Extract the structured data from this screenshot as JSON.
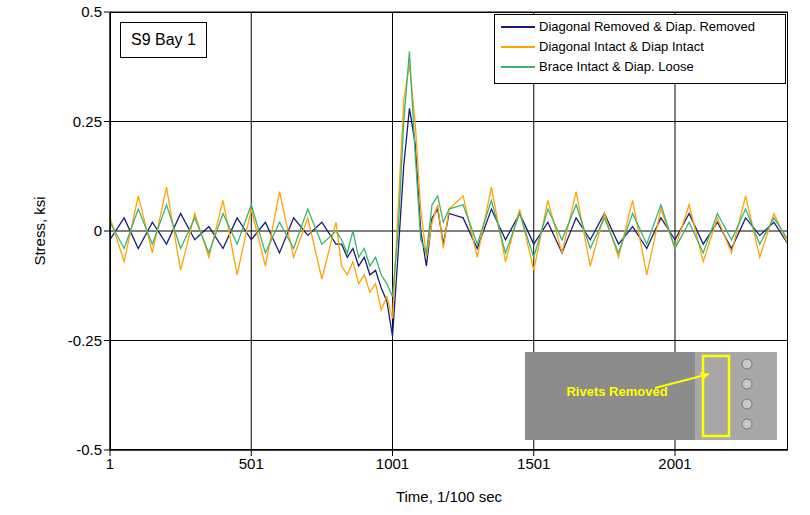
{
  "chart_data": {
    "type": "line",
    "annotations": [
      "S9 Bay 1",
      "Rivets Removed"
    ],
    "x_label": "Time, 1/100 sec",
    "y_label": "Stress, ksi",
    "x": [
      1,
      51,
      101,
      151,
      201,
      251,
      301,
      351,
      401,
      451,
      501,
      551,
      601,
      651,
      701,
      751,
      801,
      821,
      841,
      861,
      881,
      901,
      921,
      941,
      961,
      981,
      1001,
      1021,
      1041,
      1061,
      1081,
      1101,
      1121,
      1141,
      1161,
      1181,
      1201,
      1251,
      1301,
      1351,
      1401,
      1451,
      1501,
      1551,
      1601,
      1651,
      1701,
      1751,
      1801,
      1851,
      1901,
      1951,
      2001,
      2051,
      2101,
      2151,
      2201,
      2251,
      2301,
      2351,
      2401
    ],
    "series": [
      {
        "name": "Diagonal Removed & Diap. Removed",
        "color": "#1a1a80",
        "values": [
          -0.02,
          0.03,
          -0.04,
          0.02,
          -0.03,
          0.04,
          -0.02,
          0.01,
          -0.04,
          0.03,
          -0.02,
          0.02,
          -0.05,
          0.03,
          -0.01,
          0.02,
          -0.03,
          -0.03,
          -0.06,
          -0.04,
          -0.08,
          -0.06,
          -0.1,
          -0.09,
          -0.13,
          -0.16,
          -0.24,
          -0.05,
          0.15,
          0.28,
          0.2,
          0.0,
          -0.08,
          0.03,
          0.05,
          -0.03,
          0.04,
          0.03,
          -0.04,
          0.05,
          -0.02,
          0.04,
          -0.03,
          0.02,
          -0.05,
          0.03,
          -0.02,
          0.04,
          -0.03,
          0.01,
          -0.04,
          0.03,
          -0.02,
          0.04,
          -0.03,
          0.02,
          -0.04,
          0.03,
          -0.01,
          0.02,
          -0.03
        ]
      },
      {
        "name": "Diagonal Intact & Diap Intact",
        "color": "#ffa500",
        "values": [
          0.03,
          -0.07,
          0.08,
          -0.05,
          0.1,
          -0.09,
          0.04,
          -0.06,
          0.07,
          -0.1,
          0.05,
          -0.08,
          0.09,
          -0.06,
          0.03,
          -0.11,
          0.02,
          -0.08,
          -0.1,
          -0.07,
          -0.12,
          -0.1,
          -0.14,
          -0.12,
          -0.18,
          -0.15,
          -0.2,
          0.05,
          0.3,
          0.38,
          0.25,
          0.05,
          -0.06,
          0.02,
          0.06,
          -0.04,
          0.05,
          0.08,
          -0.06,
          0.1,
          -0.07,
          0.05,
          -0.09,
          0.07,
          -0.05,
          0.09,
          -0.08,
          0.04,
          -0.06,
          0.07,
          -0.1,
          0.05,
          -0.04,
          0.06,
          -0.07,
          0.03,
          -0.05,
          0.08,
          -0.06,
          0.04,
          -0.03
        ]
      },
      {
        "name": "Brace Intact & Diap. Loose",
        "color": "#3cb371",
        "values": [
          0.02,
          -0.04,
          0.05,
          -0.03,
          0.06,
          -0.04,
          0.03,
          -0.05,
          0.04,
          -0.03,
          0.06,
          -0.05,
          0.02,
          -0.04,
          0.05,
          -0.03,
          0.0,
          -0.02,
          -0.05,
          0.0,
          -0.06,
          -0.04,
          -0.08,
          -0.06,
          -0.1,
          -0.12,
          -0.15,
          0.0,
          0.25,
          0.41,
          0.18,
          -0.02,
          -0.05,
          0.06,
          0.08,
          0.02,
          0.05,
          0.06,
          -0.03,
          0.07,
          -0.05,
          0.04,
          -0.06,
          0.05,
          -0.02,
          0.06,
          -0.04,
          0.03,
          -0.05,
          0.04,
          -0.03,
          0.06,
          -0.04,
          0.02,
          -0.05,
          0.04,
          -0.02,
          0.05,
          -0.03,
          0.03,
          -0.02
        ]
      }
    ],
    "xlim": [
      1,
      2401
    ],
    "xticks": [
      1,
      501,
      1001,
      1501,
      2001
    ],
    "ylim": [
      -0.5,
      0.5
    ],
    "yticks": [
      -0.5,
      -0.25,
      0,
      0.25,
      0.5
    ],
    "grid": true,
    "legend": "upper right"
  }
}
